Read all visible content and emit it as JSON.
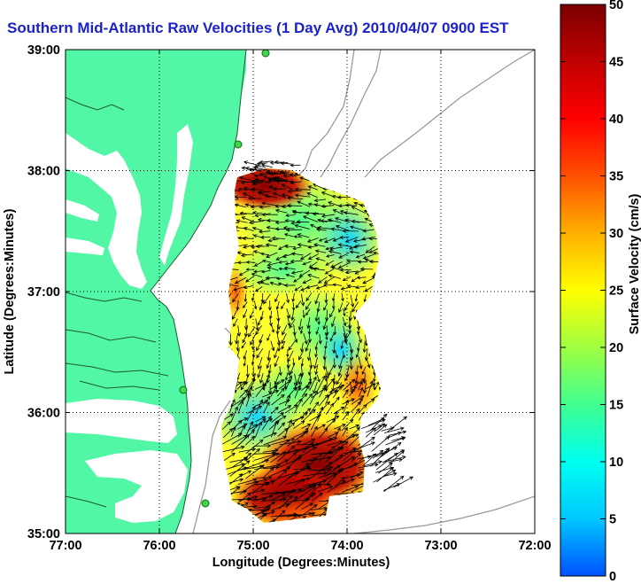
{
  "title": "Southern Mid-Atlantic Raw Velocities (1 Day Avg) 2010/04/07 0900 EST",
  "map": {
    "xlabel": "Longitude (Degrees:Minutes)",
    "ylabel": "Latitude (Degrees:Minutes)",
    "lon_range": [
      -77,
      -72
    ],
    "lat_range": [
      35,
      39
    ],
    "x_ticks": [
      "77:00",
      "76:00",
      "75:00",
      "74:00",
      "73:00",
      "72:00"
    ],
    "y_ticks": [
      "39:00",
      "38:00",
      "37:00",
      "36:00",
      "35:00"
    ],
    "grid": "dotted",
    "land_color": "#52f7a6",
    "water_color": "#ffffff",
    "station_color": "#3fd64a"
  },
  "colorbar": {
    "label": "Surface Velocity (cm/s)",
    "range": [
      0,
      50
    ],
    "ticks": [
      "50",
      "45",
      "40",
      "35",
      "30",
      "25",
      "20",
      "15",
      "10",
      "5",
      "0"
    ],
    "colors": [
      "#0050ff",
      "#00c8ff",
      "#00fff0",
      "#40ff90",
      "#a0ff40",
      "#ffff00",
      "#ffb000",
      "#ff5000",
      "#ff0000",
      "#c00000",
      "#7a0000"
    ]
  },
  "chart_data": {
    "type": "heatmap",
    "title": "Southern Mid-Atlantic Raw Velocities (1 Day Avg) 2010/04/07 0900 EST",
    "xlabel": "Longitude (Degrees:Minutes)",
    "ylabel": "Latitude (Degrees:Minutes)",
    "xlim": [
      -77,
      -72
    ],
    "ylim": [
      35,
      39
    ],
    "value_label": "Surface Velocity (cm/s)",
    "value_range": [
      0,
      50
    ],
    "regions": [
      {
        "lon": -74.9,
        "lat": 37.85,
        "speed": 45
      },
      {
        "lon": -74.6,
        "lat": 37.6,
        "speed": 22
      },
      {
        "lon": -74.2,
        "lat": 37.4,
        "speed": 12
      },
      {
        "lon": -74.85,
        "lat": 37.0,
        "speed": 30
      },
      {
        "lon": -74.4,
        "lat": 36.6,
        "speed": 18
      },
      {
        "lon": -74.1,
        "lat": 36.3,
        "speed": 38
      },
      {
        "lon": -75.0,
        "lat": 35.9,
        "speed": 14
      },
      {
        "lon": -74.6,
        "lat": 35.5,
        "speed": 48
      },
      {
        "lon": -74.9,
        "lat": 35.15,
        "speed": 40
      }
    ]
  }
}
